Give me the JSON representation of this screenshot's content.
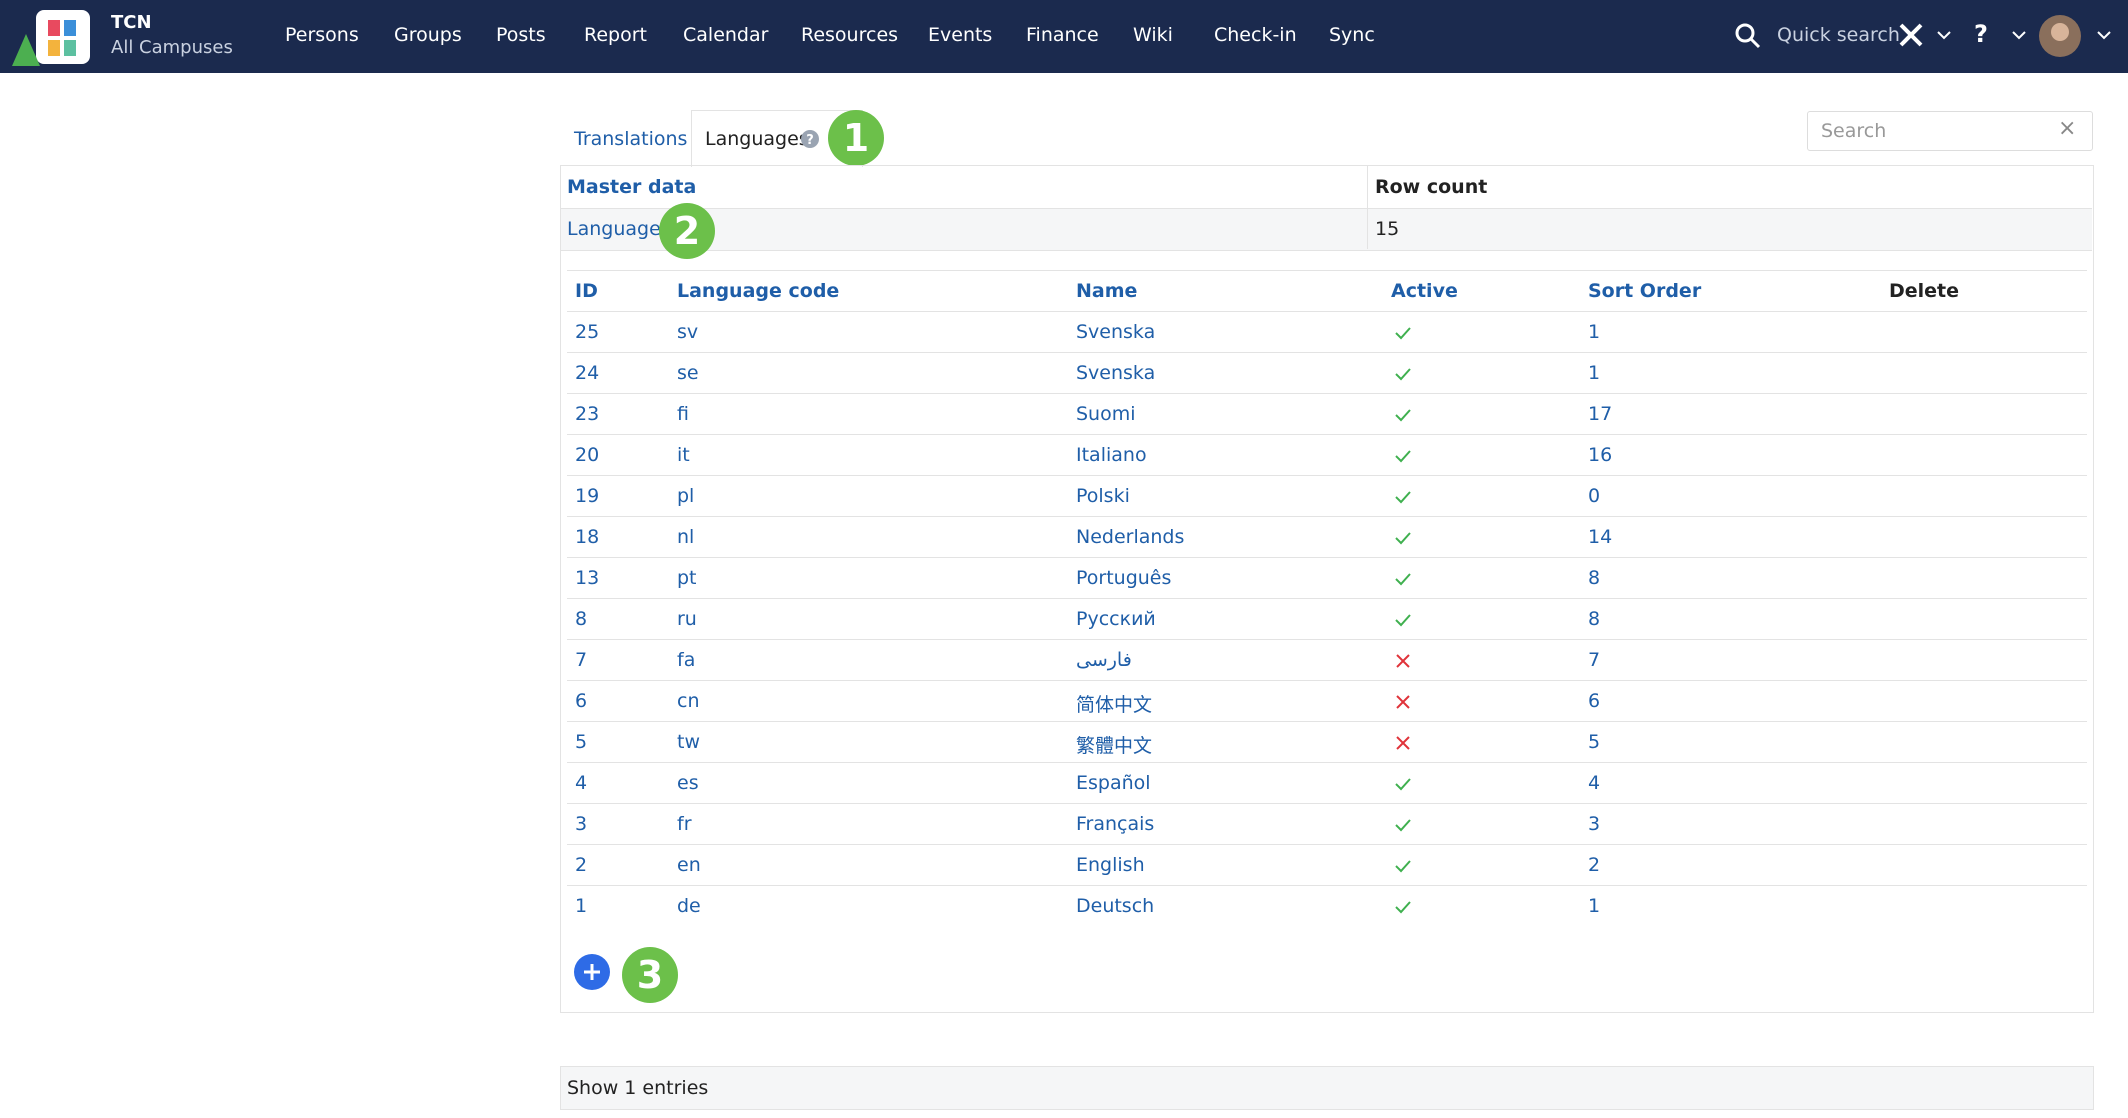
{
  "header": {
    "brand": "TCN",
    "campus": "All Campuses",
    "nav": [
      "Persons",
      "Groups",
      "Posts",
      "Report",
      "Calendar",
      "Resources",
      "Events",
      "Finance",
      "Wiki",
      "Check-in",
      "Sync"
    ],
    "quick_search": "Quick search",
    "help": "?"
  },
  "tabs": [
    "Translations",
    "Languages"
  ],
  "search": {
    "placeholder": "Search"
  },
  "annotations": [
    "1",
    "2",
    "3"
  ],
  "master": {
    "headers": [
      "Master data",
      "Row count"
    ],
    "rows": [
      [
        "Language",
        15
      ]
    ]
  },
  "table": {
    "headers": [
      "ID",
      "Language code",
      "Name",
      "Active",
      "Sort Order",
      "Delete"
    ],
    "rows": [
      [
        25,
        "sv",
        "Svenska",
        true,
        1
      ],
      [
        24,
        "se",
        "Svenska",
        true,
        1
      ],
      [
        23,
        "fi",
        "Suomi",
        true,
        17
      ],
      [
        20,
        "it",
        "Italiano",
        true,
        16
      ],
      [
        19,
        "pl",
        "Polski",
        true,
        0
      ],
      [
        18,
        "nl",
        "Nederlands",
        true,
        14
      ],
      [
        13,
        "pt",
        "Português",
        true,
        8
      ],
      [
        8,
        "ru",
        "Русский",
        true,
        8
      ],
      [
        7,
        "fa",
        "فارسی",
        false,
        7
      ],
      [
        6,
        "cn",
        "简体中文",
        false,
        6
      ],
      [
        5,
        "tw",
        "繁體中文",
        false,
        5
      ],
      [
        4,
        "es",
        "Español",
        true,
        4
      ],
      [
        3,
        "fr",
        "Français",
        true,
        3
      ],
      [
        2,
        "en",
        "English",
        true,
        2
      ],
      [
        1,
        "de",
        "Deutsch",
        true,
        1
      ]
    ]
  },
  "footer": {
    "text": "Show 1 entries"
  }
}
